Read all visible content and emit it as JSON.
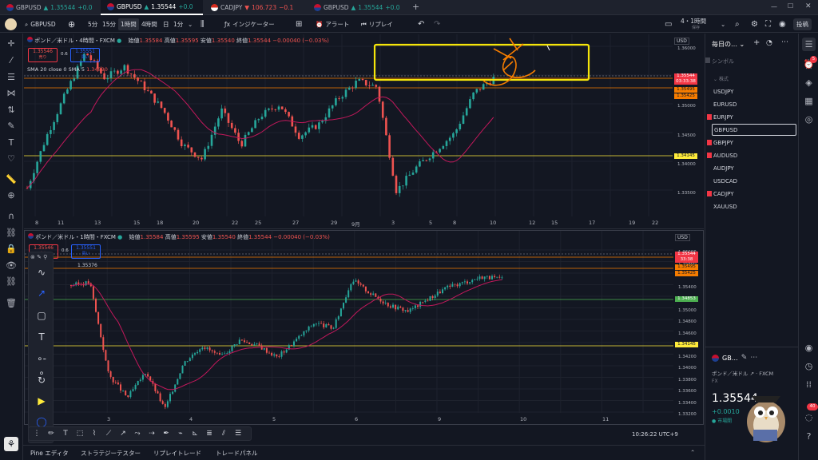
{
  "tabs": [
    {
      "symbol": "GBPUSD",
      "price": "1.35544",
      "change": "+0.0",
      "dir": "up"
    },
    {
      "symbol": "GBPUSD",
      "price": "1.35544",
      "change": "+0.0",
      "dir": "up"
    },
    {
      "symbol": "CADJPY",
      "price": "106.723",
      "change": "−0.1",
      "dir": "dn"
    },
    {
      "symbol": "GBPUSD",
      "price": "1.35544",
      "change": "+0.0",
      "dir": "up"
    }
  ],
  "toolbar": {
    "symbol": "GBPUSD",
    "intervals": [
      "5分",
      "15分",
      "1時間",
      "4時間",
      "日",
      "1分"
    ],
    "selected_interval": "1時間",
    "indicators": "インジケーター",
    "alert": "アラート",
    "replay": "リプレイ",
    "layout_name": "4・1時間",
    "layout_sub": "保存",
    "publish": "投稿"
  },
  "pane1": {
    "title": "ポンド／米ドル・4時間・FXCM",
    "ohlc": {
      "open_label": "始値",
      "open": "1.35584",
      "high_label": "高値",
      "high": "1.35595",
      "low_label": "安値",
      "low": "1.35540",
      "close_label": "終値",
      "close": "1.35544",
      "change": "−0.00040 (−0.03%)"
    },
    "sell": {
      "price": "1.35546",
      "label": "売り"
    },
    "buy": {
      "price": "1.35551",
      "label": "買い"
    },
    "spread": "0.6",
    "indicator": "SMA 20 close 0 SMA 5",
    "sma_value": "1.34890",
    "currency": "USD",
    "price_axis": [
      "1.36000",
      "1.35500",
      "1.35000",
      "1.34500",
      "1.34000",
      "1.33500"
    ],
    "price_tags": [
      {
        "text": "1.35544",
        "color": "#f23645"
      },
      {
        "text": "03:33:38",
        "color": "#f23645"
      },
      {
        "text": "1.35495",
        "color": "#f57c00"
      },
      {
        "text": "1.35425",
        "color": "#f57c00"
      },
      {
        "text": "1.34145",
        "color": "#ffeb3b"
      }
    ],
    "time_axis": [
      "8",
      "11",
      "13",
      "15",
      "18",
      "20",
      "22",
      "25",
      "27",
      "29",
      "9月",
      "3",
      "5",
      "8",
      "10",
      "12",
      "15",
      "17",
      "19",
      "22"
    ]
  },
  "pane2": {
    "title": "ポンド／米ドル・1時間・FXCM",
    "ohlc": {
      "open_label": "始値",
      "open": "1.35584",
      "high_label": "高値",
      "high": "1.35595",
      "low_label": "安値",
      "low": "1.35540",
      "close_label": "終値",
      "close": "1.35544",
      "change": "−0.00040 (−0.03%)"
    },
    "sell": {
      "price": "1.35546",
      "label": "売り"
    },
    "buy": {
      "price": "1.35551",
      "label": "買い"
    },
    "spread": "0.6",
    "sma_value": "1.35376",
    "currency": "USD",
    "price_axis": [
      "1.36000",
      "1.35800",
      "1.35600",
      "1.35400",
      "1.35200",
      "1.35000",
      "1.34800",
      "1.34600",
      "1.34400",
      "1.34200",
      "1.34000",
      "1.33800",
      "1.33600",
      "1.33400",
      "1.33200"
    ],
    "price_tags": [
      {
        "text": "1.35544",
        "color": "#f23645"
      },
      {
        "text": "33:38",
        "color": "#f23645"
      },
      {
        "text": "1.35495",
        "color": "#f57c00"
      },
      {
        "text": "1.35425",
        "color": "#f57c00"
      },
      {
        "text": "1.34853",
        "color": "#4caf50"
      },
      {
        "text": "1.34145",
        "color": "#ffeb3b"
      }
    ],
    "time_axis": [
      "3",
      "4",
      "5",
      "6",
      "9",
      "10",
      "11"
    ],
    "clock": "10:26:22 UTC+9"
  },
  "watchlist": {
    "title": "毎日の…",
    "symbol_header": "シンボル",
    "group": "株式",
    "items": [
      "USDJPY",
      "EURUSD",
      "EURJPY",
      "GBPUSD",
      "GBPJPY",
      "AUDUSD",
      "AUDJPY",
      "USDCAD",
      "CADJPY",
      "XAUUSD"
    ],
    "selected": "GBPUSD"
  },
  "details": {
    "symbol": "GB…",
    "name": "ポンド／米ドル",
    "exchange": "FXCM",
    "type": "FX",
    "price": "1.35544",
    "change": "+0.0010",
    "status": "市場開"
  },
  "right_badges": {
    "alerts": "5",
    "notifications": "40"
  },
  "bottom": [
    "Pine エディタ",
    "ストラテジーテスター",
    "リプレイトレード",
    "トレードパネル"
  ]
}
